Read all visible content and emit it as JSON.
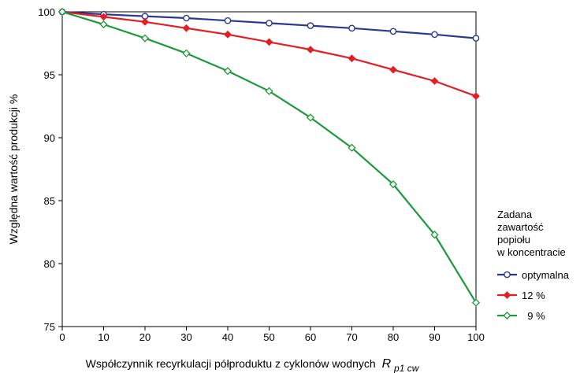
{
  "chart_data": {
    "type": "line",
    "xlabel": "Współczynnik recyrkulacji półproduktu z cyklonów wodnych",
    "xlabel_symbol": "R",
    "xlabel_subscript": "p1 cw",
    "ylabel": "Względna wartość produkcji %",
    "xlim": [
      0,
      100
    ],
    "ylim": [
      75,
      100
    ],
    "x_ticks": [
      0,
      10,
      20,
      30,
      40,
      50,
      60,
      70,
      80,
      90,
      100
    ],
    "y_ticks": [
      75,
      80,
      85,
      90,
      95,
      100
    ],
    "grid": false,
    "x": [
      0,
      10,
      20,
      30,
      40,
      50,
      60,
      70,
      80,
      90,
      100
    ],
    "legend": {
      "title_lines": [
        "Zadana",
        "zawartość",
        "popiołu",
        "w koncentracie"
      ],
      "placement": "right"
    },
    "series": [
      {
        "name": "optymalna",
        "color": "#2b3990",
        "marker": "circle",
        "values": [
          100,
          99.8,
          99.65,
          99.5,
          99.3,
          99.1,
          98.9,
          98.7,
          98.45,
          98.2,
          97.9
        ]
      },
      {
        "name": "12 %",
        "color": "#e31e24",
        "marker": "diamond",
        "values": [
          100,
          99.6,
          99.2,
          98.7,
          98.2,
          97.6,
          97.0,
          96.3,
          95.4,
          94.5,
          93.3
        ]
      },
      {
        "name": "  9 %",
        "color": "#1b9a3c",
        "marker": "diamond-open",
        "values": [
          100,
          99.0,
          97.9,
          96.7,
          95.3,
          93.7,
          91.6,
          89.2,
          86.3,
          82.3,
          76.9
        ]
      }
    ]
  }
}
